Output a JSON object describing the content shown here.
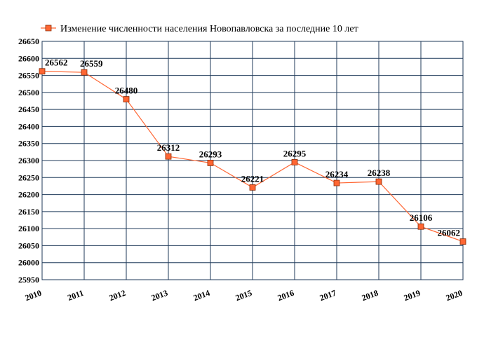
{
  "chart_data": {
    "type": "line",
    "title": "",
    "xlabel": "",
    "ylabel": "",
    "x": [
      "2010",
      "2011",
      "2012",
      "2013",
      "2014",
      "2015",
      "2016",
      "2017",
      "2018",
      "2019",
      "2020"
    ],
    "series": [
      {
        "name": "Изменение численности населения Новопавловска за последние 10 лет",
        "values": [
          26562,
          26559,
          26480,
          26312,
          26293,
          26221,
          26295,
          26234,
          26238,
          26106,
          26062
        ],
        "labels": [
          "26562",
          "26559",
          "26480",
          "26312",
          "26293",
          "26221",
          "26295",
          "26234",
          "26238",
          "26106",
          "26062"
        ],
        "color": "#ff6633",
        "marker": "square"
      }
    ],
    "ylim": [
      25950,
      26650
    ],
    "yticks": [
      "25950",
      "26000",
      "26050",
      "26100",
      "26150",
      "26200",
      "26250",
      "26300",
      "26350",
      "26400",
      "26450",
      "26500",
      "26550",
      "26600",
      "26650"
    ],
    "grid": true,
    "grid_color": "#1f3a5a",
    "legend_position": "top-left"
  }
}
